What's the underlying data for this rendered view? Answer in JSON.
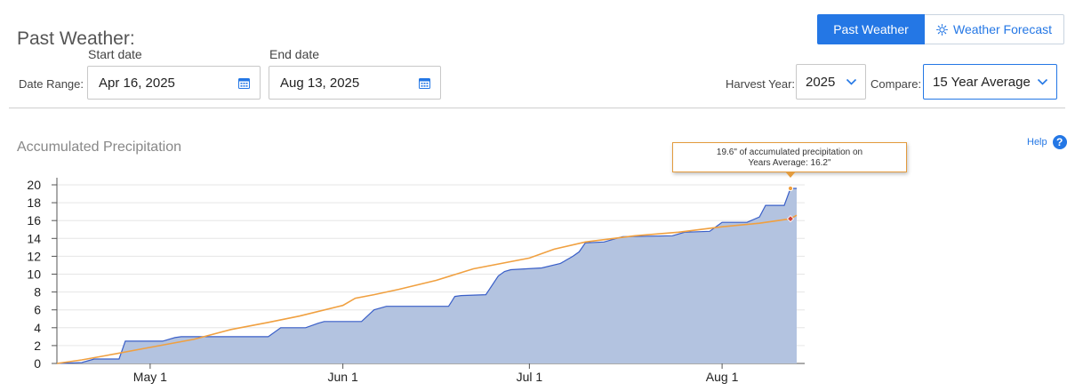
{
  "page": {
    "title": "Past Weather:"
  },
  "view_toggle": {
    "past_label": "Past Weather",
    "forecast_label": "Weather Forecast"
  },
  "filters": {
    "date_range_label": "Date Range:",
    "start_label": "Start date",
    "start_value": "Apr 16, 2025",
    "end_label": "End date",
    "end_value": "Aug 13, 2025",
    "harvest_year_label": "Harvest Year:",
    "harvest_year_value": "2025",
    "compare_label": "Compare:",
    "compare_value": "15 Year Average"
  },
  "help_label": "Help",
  "help_icon_glyph": "?",
  "tooltip": {
    "line1": "19.6\" of accumulated precipitation on",
    "line2": "Years Average: 16.2\""
  },
  "colors": {
    "accent": "#2477e5",
    "area_fill": "#b3c3e0",
    "area_line": "#3a5fc8",
    "average_line": "#f0a040"
  },
  "chart_data": {
    "type": "area",
    "title": "Accumulated Precipitation",
    "x_start": "2025-04-16",
    "x_end": "2025-08-13",
    "x_ticks": [
      {
        "date": "2025-05-01",
        "label": "May 1"
      },
      {
        "date": "2025-06-01",
        "label": "Jun 1"
      },
      {
        "date": "2025-07-01",
        "label": "Jul 1"
      },
      {
        "date": "2025-08-01",
        "label": "Aug 1"
      }
    ],
    "ylim": [
      0,
      20
    ],
    "y_ticks": [
      0,
      2,
      4,
      6,
      8,
      10,
      12,
      14,
      16,
      18,
      20
    ],
    "grid": true,
    "series": [
      {
        "kind": "area",
        "points": [
          [
            "2025-04-16",
            0
          ],
          [
            "2025-04-20",
            0.1
          ],
          [
            "2025-04-22",
            0.5
          ],
          [
            "2025-04-26",
            0.5
          ],
          [
            "2025-04-27",
            2.5
          ],
          [
            "2025-05-03",
            2.5
          ],
          [
            "2025-05-05",
            2.9
          ],
          [
            "2025-05-06",
            3.0
          ],
          [
            "2025-05-20",
            3.0
          ],
          [
            "2025-05-22",
            4.0
          ],
          [
            "2025-05-26",
            4.0
          ],
          [
            "2025-05-28",
            4.5
          ],
          [
            "2025-05-29",
            4.7
          ],
          [
            "2025-06-04",
            4.7
          ],
          [
            "2025-06-06",
            6.0
          ],
          [
            "2025-06-08",
            6.4
          ],
          [
            "2025-06-18",
            6.4
          ],
          [
            "2025-06-19",
            7.5
          ],
          [
            "2025-06-20",
            7.6
          ],
          [
            "2025-06-24",
            7.7
          ],
          [
            "2025-06-26",
            9.8
          ],
          [
            "2025-06-27",
            10.3
          ],
          [
            "2025-06-28",
            10.5
          ],
          [
            "2025-07-03",
            10.7
          ],
          [
            "2025-07-06",
            11.2
          ],
          [
            "2025-07-08",
            12.0
          ],
          [
            "2025-07-09",
            12.5
          ],
          [
            "2025-07-10",
            13.5
          ],
          [
            "2025-07-13",
            13.6
          ],
          [
            "2025-07-16",
            14.2
          ],
          [
            "2025-07-24",
            14.3
          ],
          [
            "2025-07-26",
            14.7
          ],
          [
            "2025-07-30",
            14.8
          ],
          [
            "2025-08-01",
            15.8
          ],
          [
            "2025-08-05",
            15.8
          ],
          [
            "2025-08-07",
            16.4
          ],
          [
            "2025-08-08",
            17.7
          ],
          [
            "2025-08-11",
            17.7
          ],
          [
            "2025-08-12",
            19.6
          ],
          [
            "2025-08-13",
            19.6
          ]
        ]
      },
      {
        "kind": "line",
        "points": [
          [
            "2025-04-16",
            0
          ],
          [
            "2025-04-20",
            0.4
          ],
          [
            "2025-04-24",
            0.9
          ],
          [
            "2025-05-01",
            1.8
          ],
          [
            "2025-05-08",
            2.7
          ],
          [
            "2025-05-14",
            3.8
          ],
          [
            "2025-05-20",
            4.6
          ],
          [
            "2025-05-25",
            5.3
          ],
          [
            "2025-06-01",
            6.5
          ],
          [
            "2025-06-03",
            7.3
          ],
          [
            "2025-06-06",
            7.7
          ],
          [
            "2025-06-10",
            8.3
          ],
          [
            "2025-06-16",
            9.3
          ],
          [
            "2025-06-22",
            10.6
          ],
          [
            "2025-07-01",
            11.8
          ],
          [
            "2025-07-05",
            12.8
          ],
          [
            "2025-07-10",
            13.6
          ],
          [
            "2025-07-18",
            14.3
          ],
          [
            "2025-07-25",
            14.7
          ],
          [
            "2025-08-01",
            15.3
          ],
          [
            "2025-08-07",
            15.7
          ],
          [
            "2025-08-12",
            16.2
          ],
          [
            "2025-08-13",
            16.6
          ]
        ]
      }
    ]
  }
}
